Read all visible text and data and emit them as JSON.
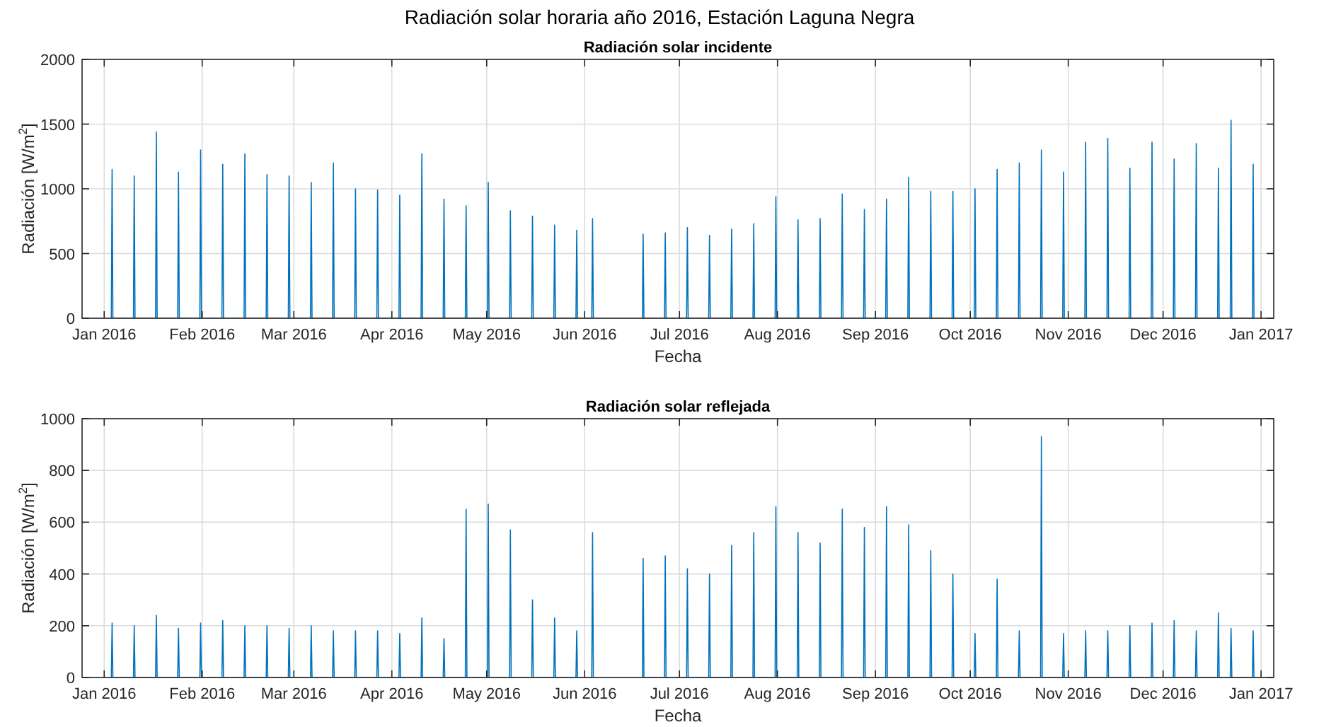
{
  "chart_data": [
    {
      "type": "line",
      "title": "Radiación solar horaria año 2016, Estación Laguna Negra",
      "subtitle": "Radiación solar incidente",
      "xlabel": "Fecha",
      "ylabel": "Radiación [W/m$^{2}$]",
      "grid": true,
      "marker": "none",
      "line_style": "solid",
      "xlim": [
        "2015-12-25",
        "2017-01-05"
      ],
      "xticks": [
        {
          "value": "2016-01-01",
          "label": "Jan 2016"
        },
        {
          "value": "2016-02-01",
          "label": "Feb 2016"
        },
        {
          "value": "2016-03-01",
          "label": "Mar 2016"
        },
        {
          "value": "2016-04-01",
          "label": "Apr 2016"
        },
        {
          "value": "2016-05-01",
          "label": "May 2016"
        },
        {
          "value": "2016-06-01",
          "label": "Jun 2016"
        },
        {
          "value": "2016-07-01",
          "label": "Jul 2016"
        },
        {
          "value": "2016-08-01",
          "label": "Aug 2016"
        },
        {
          "value": "2016-09-01",
          "label": "Sep 2016"
        },
        {
          "value": "2016-10-01",
          "label": "Oct 2016"
        },
        {
          "value": "2016-11-01",
          "label": "Nov 2016"
        },
        {
          "value": "2016-12-01",
          "label": "Dec 2016"
        },
        {
          "value": "2017-01-01",
          "label": "Jan 2017"
        }
      ],
      "ylim": [
        0,
        2000
      ],
      "yticks": [
        0,
        500,
        1000,
        1500,
        2000
      ],
      "x": [
        "2016-01-03T06:00",
        "2016-01-03T12:00",
        "2016-01-03T18:00",
        "2016-01-10T06:00",
        "2016-01-10T12:00",
        "2016-01-10T18:00",
        "2016-01-17T06:00",
        "2016-01-17T12:00",
        "2016-01-17T18:00",
        "2016-01-24T06:00",
        "2016-01-24T12:00",
        "2016-01-24T18:00",
        "2016-01-31T06:00",
        "2016-01-31T12:00",
        "2016-01-31T18:00",
        "2016-02-07T06:00",
        "2016-02-07T12:00",
        "2016-02-07T18:00",
        "2016-02-14T06:00",
        "2016-02-14T12:00",
        "2016-02-14T18:00",
        "2016-02-21T06:00",
        "2016-02-21T12:00",
        "2016-02-21T18:00",
        "2016-02-28T06:00",
        "2016-02-28T12:00",
        "2016-02-28T18:00",
        "2016-03-06T06:00",
        "2016-03-06T12:00",
        "2016-03-06T18:00",
        "2016-03-13T06:00",
        "2016-03-13T12:00",
        "2016-03-13T18:00",
        "2016-03-20T06:00",
        "2016-03-20T12:00",
        "2016-03-20T18:00",
        "2016-03-27T06:00",
        "2016-03-27T12:00",
        "2016-03-27T18:00",
        "2016-04-03T06:00",
        "2016-04-03T12:00",
        "2016-04-03T18:00",
        "2016-04-10T06:00",
        "2016-04-10T12:00",
        "2016-04-10T18:00",
        "2016-04-17T06:00",
        "2016-04-17T12:00",
        "2016-04-17T18:00",
        "2016-04-24T06:00",
        "2016-04-24T12:00",
        "2016-04-24T18:00",
        "2016-05-01T06:00",
        "2016-05-01T12:00",
        "2016-05-01T18:00",
        "2016-05-08T06:00",
        "2016-05-08T12:00",
        "2016-05-08T18:00",
        "2016-05-15T06:00",
        "2016-05-15T12:00",
        "2016-05-15T18:00",
        "2016-05-22T06:00",
        "2016-05-22T12:00",
        "2016-05-22T18:00",
        "2016-05-29T06:00",
        "2016-05-29T12:00",
        "2016-05-29T18:00",
        "2016-06-03T06:00",
        "2016-06-03T12:00",
        "2016-06-03T18:00",
        "2016-06-12T12:00",
        "2016-06-19T06:00",
        "2016-06-19T12:00",
        "2016-06-19T18:00",
        "2016-06-26T06:00",
        "2016-06-26T12:00",
        "2016-06-26T18:00",
        "2016-07-03T06:00",
        "2016-07-03T12:00",
        "2016-07-03T18:00",
        "2016-07-10T06:00",
        "2016-07-10T12:00",
        "2016-07-10T18:00",
        "2016-07-17T06:00",
        "2016-07-17T12:00",
        "2016-07-17T18:00",
        "2016-07-24T06:00",
        "2016-07-24T12:00",
        "2016-07-24T18:00",
        "2016-07-31T06:00",
        "2016-07-31T12:00",
        "2016-07-31T18:00",
        "2016-08-07T06:00",
        "2016-08-07T12:00",
        "2016-08-07T18:00",
        "2016-08-14T06:00",
        "2016-08-14T12:00",
        "2016-08-14T18:00",
        "2016-08-21T06:00",
        "2016-08-21T12:00",
        "2016-08-21T18:00",
        "2016-08-28T06:00",
        "2016-08-28T12:00",
        "2016-08-28T18:00",
        "2016-09-04T06:00",
        "2016-09-04T12:00",
        "2016-09-04T18:00",
        "2016-09-11T06:00",
        "2016-09-11T12:00",
        "2016-09-11T18:00",
        "2016-09-18T06:00",
        "2016-09-18T12:00",
        "2016-09-18T18:00",
        "2016-09-25T06:00",
        "2016-09-25T12:00",
        "2016-09-25T18:00",
        "2016-10-02T06:00",
        "2016-10-02T12:00",
        "2016-10-02T18:00",
        "2016-10-09T06:00",
        "2016-10-09T12:00",
        "2016-10-09T18:00",
        "2016-10-16T06:00",
        "2016-10-16T12:00",
        "2016-10-16T18:00",
        "2016-10-23T06:00",
        "2016-10-23T12:00",
        "2016-10-23T18:00",
        "2016-10-30T06:00",
        "2016-10-30T12:00",
        "2016-10-30T18:00",
        "2016-11-06T06:00",
        "2016-11-06T12:00",
        "2016-11-06T18:00",
        "2016-11-13T06:00",
        "2016-11-13T12:00",
        "2016-11-13T18:00",
        "2016-11-20T06:00",
        "2016-11-20T12:00",
        "2016-11-20T18:00",
        "2016-11-27T06:00",
        "2016-11-27T12:00",
        "2016-11-27T18:00",
        "2016-12-04T06:00",
        "2016-12-04T12:00",
        "2016-12-04T18:00",
        "2016-12-11T06:00",
        "2016-12-11T12:00",
        "2016-12-11T18:00",
        "2016-12-18T06:00",
        "2016-12-18T12:00",
        "2016-12-18T18:00",
        "2016-12-22T06:00",
        "2016-12-22T12:00",
        "2016-12-22T18:00",
        "2016-12-29T06:00",
        "2016-12-29T12:00",
        "2016-12-29T18:00"
      ],
      "series": [
        {
          "color": "#0072bd",
          "values": [
            0,
            1150,
            0,
            0,
            1100,
            0,
            0,
            1440,
            0,
            0,
            1130,
            0,
            0,
            1300,
            0,
            0,
            1190,
            0,
            0,
            1270,
            0,
            0,
            1110,
            0,
            0,
            1100,
            0,
            0,
            1050,
            0,
            0,
            1200,
            0,
            0,
            1000,
            0,
            0,
            990,
            0,
            0,
            950,
            0,
            0,
            1270,
            0,
            0,
            920,
            0,
            0,
            870,
            0,
            0,
            1050,
            0,
            0,
            830,
            0,
            0,
            790,
            0,
            0,
            720,
            0,
            0,
            680,
            0,
            0,
            770,
            0,
            null,
            0,
            650,
            0,
            0,
            660,
            0,
            0,
            700,
            0,
            0,
            640,
            0,
            0,
            690,
            0,
            0,
            730,
            0,
            0,
            940,
            0,
            0,
            760,
            0,
            0,
            770,
            0,
            0,
            960,
            0,
            0,
            840,
            0,
            0,
            920,
            0,
            0,
            1090,
            0,
            0,
            980,
            0,
            0,
            980,
            0,
            0,
            1000,
            0,
            0,
            1150,
            0,
            0,
            1200,
            0,
            0,
            1300,
            0,
            0,
            1130,
            0,
            0,
            1360,
            0,
            0,
            1390,
            0,
            0,
            1160,
            0,
            0,
            1360,
            0,
            0,
            1230,
            0,
            0,
            1350,
            0,
            0,
            1160,
            0,
            0,
            1530,
            0,
            0,
            1190,
            0
          ]
        }
      ]
    },
    {
      "type": "line",
      "subtitle": "Radiación solar reflejada",
      "xlabel": "Fecha",
      "ylabel": "Radiación [W/m$^{2}$]",
      "grid": true,
      "marker": "none",
      "line_style": "solid",
      "xlim": [
        "2015-12-25",
        "2017-01-05"
      ],
      "xticks": [
        {
          "value": "2016-01-01",
          "label": "Jan 2016"
        },
        {
          "value": "2016-02-01",
          "label": "Feb 2016"
        },
        {
          "value": "2016-03-01",
          "label": "Mar 2016"
        },
        {
          "value": "2016-04-01",
          "label": "Apr 2016"
        },
        {
          "value": "2016-05-01",
          "label": "May 2016"
        },
        {
          "value": "2016-06-01",
          "label": "Jun 2016"
        },
        {
          "value": "2016-07-01",
          "label": "Jul 2016"
        },
        {
          "value": "2016-08-01",
          "label": "Aug 2016"
        },
        {
          "value": "2016-09-01",
          "label": "Sep 2016"
        },
        {
          "value": "2016-10-01",
          "label": "Oct 2016"
        },
        {
          "value": "2016-11-01",
          "label": "Nov 2016"
        },
        {
          "value": "2016-12-01",
          "label": "Dec 2016"
        },
        {
          "value": "2017-01-01",
          "label": "Jan 2017"
        }
      ],
      "ylim": [
        0,
        1000
      ],
      "yticks": [
        0,
        200,
        400,
        600,
        800,
        1000
      ],
      "x": [
        "2016-01-03T06:00",
        "2016-01-03T12:00",
        "2016-01-03T18:00",
        "2016-01-10T06:00",
        "2016-01-10T12:00",
        "2016-01-10T18:00",
        "2016-01-17T06:00",
        "2016-01-17T12:00",
        "2016-01-17T18:00",
        "2016-01-24T06:00",
        "2016-01-24T12:00",
        "2016-01-24T18:00",
        "2016-01-31T06:00",
        "2016-01-31T12:00",
        "2016-01-31T18:00",
        "2016-02-07T06:00",
        "2016-02-07T12:00",
        "2016-02-07T18:00",
        "2016-02-14T06:00",
        "2016-02-14T12:00",
        "2016-02-14T18:00",
        "2016-02-21T06:00",
        "2016-02-21T12:00",
        "2016-02-21T18:00",
        "2016-02-28T06:00",
        "2016-02-28T12:00",
        "2016-02-28T18:00",
        "2016-03-06T06:00",
        "2016-03-06T12:00",
        "2016-03-06T18:00",
        "2016-03-13T06:00",
        "2016-03-13T12:00",
        "2016-03-13T18:00",
        "2016-03-20T06:00",
        "2016-03-20T12:00",
        "2016-03-20T18:00",
        "2016-03-27T06:00",
        "2016-03-27T12:00",
        "2016-03-27T18:00",
        "2016-04-03T06:00",
        "2016-04-03T12:00",
        "2016-04-03T18:00",
        "2016-04-10T06:00",
        "2016-04-10T12:00",
        "2016-04-10T18:00",
        "2016-04-17T06:00",
        "2016-04-17T12:00",
        "2016-04-17T18:00",
        "2016-04-24T06:00",
        "2016-04-24T12:00",
        "2016-04-24T18:00",
        "2016-05-01T06:00",
        "2016-05-01T12:00",
        "2016-05-01T18:00",
        "2016-05-08T06:00",
        "2016-05-08T12:00",
        "2016-05-08T18:00",
        "2016-05-15T06:00",
        "2016-05-15T12:00",
        "2016-05-15T18:00",
        "2016-05-22T06:00",
        "2016-05-22T12:00",
        "2016-05-22T18:00",
        "2016-05-29T06:00",
        "2016-05-29T12:00",
        "2016-05-29T18:00",
        "2016-06-03T06:00",
        "2016-06-03T12:00",
        "2016-06-03T18:00",
        "2016-06-12T12:00",
        "2016-06-19T06:00",
        "2016-06-19T12:00",
        "2016-06-19T18:00",
        "2016-06-26T06:00",
        "2016-06-26T12:00",
        "2016-06-26T18:00",
        "2016-07-03T06:00",
        "2016-07-03T12:00",
        "2016-07-03T18:00",
        "2016-07-10T06:00",
        "2016-07-10T12:00",
        "2016-07-10T18:00",
        "2016-07-17T06:00",
        "2016-07-17T12:00",
        "2016-07-17T18:00",
        "2016-07-24T06:00",
        "2016-07-24T12:00",
        "2016-07-24T18:00",
        "2016-07-31T06:00",
        "2016-07-31T12:00",
        "2016-07-31T18:00",
        "2016-08-07T06:00",
        "2016-08-07T12:00",
        "2016-08-07T18:00",
        "2016-08-14T06:00",
        "2016-08-14T12:00",
        "2016-08-14T18:00",
        "2016-08-21T06:00",
        "2016-08-21T12:00",
        "2016-08-21T18:00",
        "2016-08-28T06:00",
        "2016-08-28T12:00",
        "2016-08-28T18:00",
        "2016-09-04T06:00",
        "2016-09-04T12:00",
        "2016-09-04T18:00",
        "2016-09-11T06:00",
        "2016-09-11T12:00",
        "2016-09-11T18:00",
        "2016-09-18T06:00",
        "2016-09-18T12:00",
        "2016-09-18T18:00",
        "2016-09-25T06:00",
        "2016-09-25T12:00",
        "2016-09-25T18:00",
        "2016-10-02T06:00",
        "2016-10-02T12:00",
        "2016-10-02T18:00",
        "2016-10-09T06:00",
        "2016-10-09T12:00",
        "2016-10-09T18:00",
        "2016-10-16T06:00",
        "2016-10-16T12:00",
        "2016-10-16T18:00",
        "2016-10-23T06:00",
        "2016-10-23T12:00",
        "2016-10-23T18:00",
        "2016-10-30T06:00",
        "2016-10-30T12:00",
        "2016-10-30T18:00",
        "2016-11-06T06:00",
        "2016-11-06T12:00",
        "2016-11-06T18:00",
        "2016-11-13T06:00",
        "2016-11-13T12:00",
        "2016-11-13T18:00",
        "2016-11-20T06:00",
        "2016-11-20T12:00",
        "2016-11-20T18:00",
        "2016-11-27T06:00",
        "2016-11-27T12:00",
        "2016-11-27T18:00",
        "2016-12-04T06:00",
        "2016-12-04T12:00",
        "2016-12-04T18:00",
        "2016-12-11T06:00",
        "2016-12-11T12:00",
        "2016-12-11T18:00",
        "2016-12-18T06:00",
        "2016-12-18T12:00",
        "2016-12-18T18:00",
        "2016-12-22T06:00",
        "2016-12-22T12:00",
        "2016-12-22T18:00",
        "2016-12-29T06:00",
        "2016-12-29T12:00",
        "2016-12-29T18:00"
      ],
      "series": [
        {
          "color": "#0072bd",
          "values": [
            0,
            210,
            0,
            0,
            200,
            0,
            0,
            240,
            0,
            0,
            190,
            0,
            0,
            210,
            0,
            0,
            220,
            0,
            0,
            200,
            0,
            0,
            200,
            0,
            0,
            190,
            0,
            0,
            200,
            0,
            0,
            180,
            0,
            0,
            180,
            0,
            0,
            180,
            0,
            0,
            170,
            0,
            0,
            230,
            0,
            0,
            150,
            0,
            0,
            650,
            0,
            0,
            670,
            0,
            0,
            570,
            0,
            0,
            300,
            0,
            0,
            230,
            0,
            0,
            180,
            0,
            0,
            560,
            0,
            null,
            0,
            460,
            0,
            0,
            470,
            0,
            0,
            420,
            0,
            0,
            400,
            0,
            0,
            510,
            0,
            0,
            560,
            0,
            0,
            660,
            0,
            0,
            560,
            0,
            0,
            520,
            0,
            0,
            650,
            0,
            0,
            580,
            0,
            0,
            660,
            0,
            0,
            590,
            0,
            0,
            490,
            0,
            0,
            400,
            0,
            0,
            170,
            0,
            0,
            380,
            0,
            0,
            180,
            0,
            0,
            930,
            0,
            0,
            170,
            0,
            0,
            180,
            0,
            0,
            180,
            0,
            0,
            200,
            0,
            0,
            210,
            0,
            0,
            220,
            0,
            0,
            180,
            0,
            0,
            250,
            0,
            0,
            190,
            0,
            0,
            180,
            0
          ]
        }
      ]
    }
  ]
}
